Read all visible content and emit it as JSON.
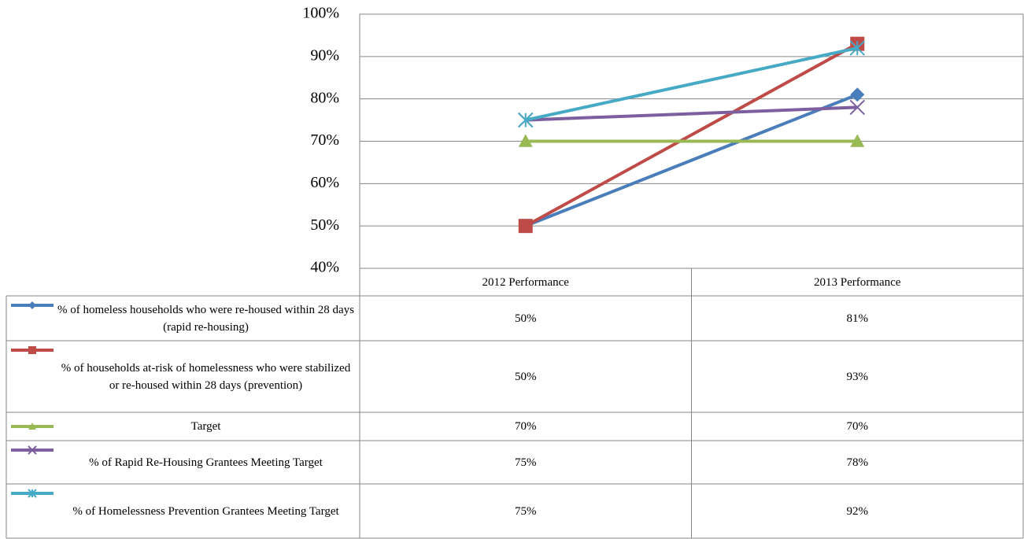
{
  "chart_data": {
    "type": "line",
    "categories": [
      "2012 Performance",
      "2013 Performance"
    ],
    "series": [
      {
        "name": "% of homeless households who were re-housed within 28 days (rapid re-housing)",
        "color": "#4a7ebb",
        "marker": "diamond",
        "values": [
          50,
          81
        ],
        "value_labels": [
          "50%",
          "81%"
        ]
      },
      {
        "name": "% of households at-risk of homelessness who were stabilized or re-housed within 28 days (prevention)",
        "color": "#be4b48",
        "marker": "square",
        "values": [
          50,
          93
        ],
        "value_labels": [
          "50%",
          "93%"
        ]
      },
      {
        "name": "Target",
        "color": "#98b954",
        "marker": "triangle",
        "values": [
          70,
          70
        ],
        "value_labels": [
          "70%",
          "70%"
        ]
      },
      {
        "name": "% of Rapid Re-Housing Grantees Meeting Target",
        "color": "#7d5fa0",
        "marker": "x",
        "values": [
          75,
          78
        ],
        "value_labels": [
          "75%",
          "78%"
        ]
      },
      {
        "name": "% of Homelessness Prevention Grantees Meeting Target",
        "color": "#46aac5",
        "marker": "star",
        "values": [
          75,
          92
        ],
        "value_labels": [
          "75%",
          "92%"
        ]
      }
    ],
    "ylim": [
      40,
      100
    ],
    "yticks": [
      {
        "value": 40,
        "label": "40%"
      },
      {
        "value": 50,
        "label": "50%"
      },
      {
        "value": 60,
        "label": "60%"
      },
      {
        "value": 70,
        "label": "70%"
      },
      {
        "value": 80,
        "label": "80%"
      },
      {
        "value": 90,
        "label": "90%"
      },
      {
        "value": 100,
        "label": "100%"
      }
    ],
    "grid": true
  }
}
